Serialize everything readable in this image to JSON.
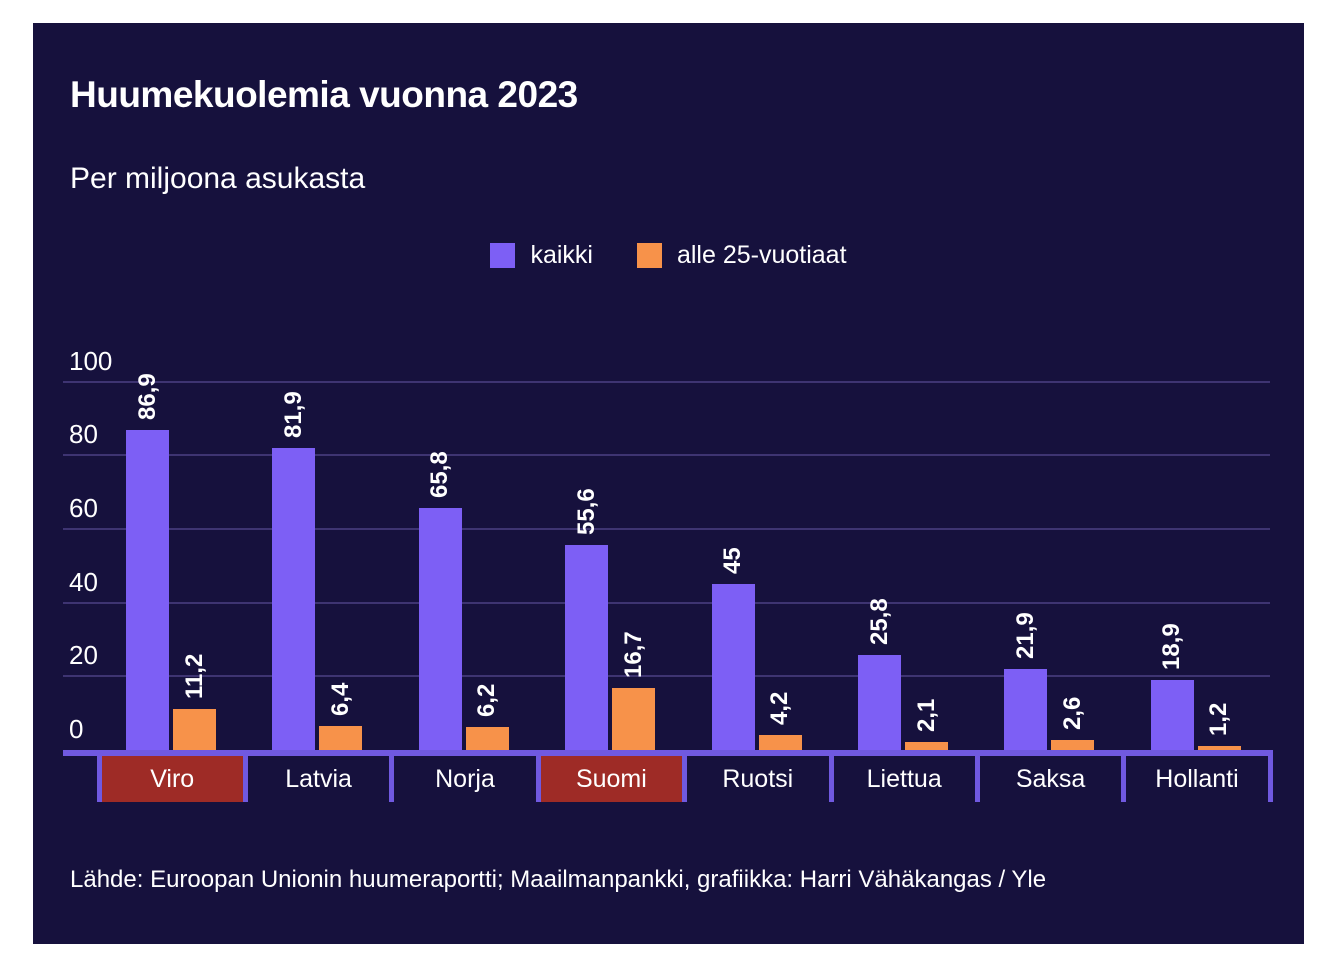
{
  "title": "Huumekuolemia vuonna 2023",
  "subtitle": "Per miljoona asukasta",
  "source": "Lähde: Euroopan Unionin huumeraportti; Maailmanpankki, grafiikka: Harri Vähäkangas / Yle",
  "legend": {
    "items": [
      {
        "label": "kaikki",
        "color": "#7d5ff5"
      },
      {
        "label": "alle 25-vuotiaat",
        "color": "#f7924a"
      }
    ]
  },
  "colors": {
    "page_background": "#ffffff",
    "card_background": "#16113d",
    "bar_all": "#7d5ff5",
    "bar_under25": "#f7924a",
    "gridline": "#3e3472",
    "axis": "#7059e0",
    "highlight_label": "#9e2b26",
    "text": "#ffffff"
  },
  "chart_data": {
    "type": "bar",
    "title": "Huumekuolemia vuonna 2023",
    "subtitle": "Per miljoona asukasta",
    "xlabel": "",
    "ylabel": "",
    "categories": [
      "Viro",
      "Latvia",
      "Norja",
      "Suomi",
      "Ruotsi",
      "Liettua",
      "Saksa",
      "Hollanti"
    ],
    "highlighted_categories": [
      "Viro",
      "Suomi"
    ],
    "series": [
      {
        "name": "kaikki",
        "color": "#7d5ff5",
        "values": [
          86.9,
          81.9,
          65.8,
          55.6,
          45,
          25.8,
          21.9,
          18.9
        ],
        "labels": [
          "86,9",
          "81,9",
          "65,8",
          "55,6",
          "45",
          "25,8",
          "21,9",
          "18,9"
        ]
      },
      {
        "name": "alle 25-vuotiaat",
        "color": "#f7924a",
        "values": [
          11.2,
          6.4,
          6.2,
          16.7,
          4.2,
          2.1,
          2.6,
          1.2
        ],
        "labels": [
          "11,2",
          "6,4",
          "6,2",
          "16,7",
          "4,2",
          "2,1",
          "2,6",
          "1,2"
        ]
      }
    ],
    "yticks": [
      0,
      20,
      40,
      60,
      80,
      100
    ],
    "ytick_labels": [
      "0",
      "20",
      "40",
      "60",
      "80",
      "100"
    ],
    "ylim": [
      0,
      100
    ],
    "grid": true,
    "legend_position": "top-center",
    "value_label_orientation": "vertical"
  }
}
